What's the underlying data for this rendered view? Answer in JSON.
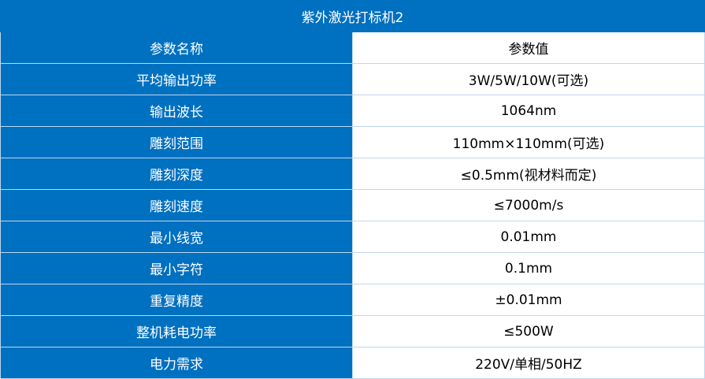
{
  "title": "紫外激光打标机2",
  "header": {
    "name": "参数名称",
    "value": "参数值"
  },
  "rows": [
    {
      "name": "平均输出功率",
      "value": "3W/5W/10W(可选)"
    },
    {
      "name": "输出波长",
      "value": "1064nm"
    },
    {
      "name": "雕刻范围",
      "value": "110mm×110mm(可选)"
    },
    {
      "name": "雕刻深度",
      "value": "≤0.5mm(视材料而定)"
    },
    {
      "name": "雕刻速度",
      "value": "≤7000m/s"
    },
    {
      "name": "最小线宽",
      "value": "0.01mm"
    },
    {
      "name": "最小字符",
      "value": "0.1mm"
    },
    {
      "name": "重复精度",
      "value": "±0.01mm"
    },
    {
      "name": "整机耗电功率",
      "value": "≤500W"
    },
    {
      "name": "电力需求",
      "value": "220V/单相/50HZ"
    }
  ]
}
